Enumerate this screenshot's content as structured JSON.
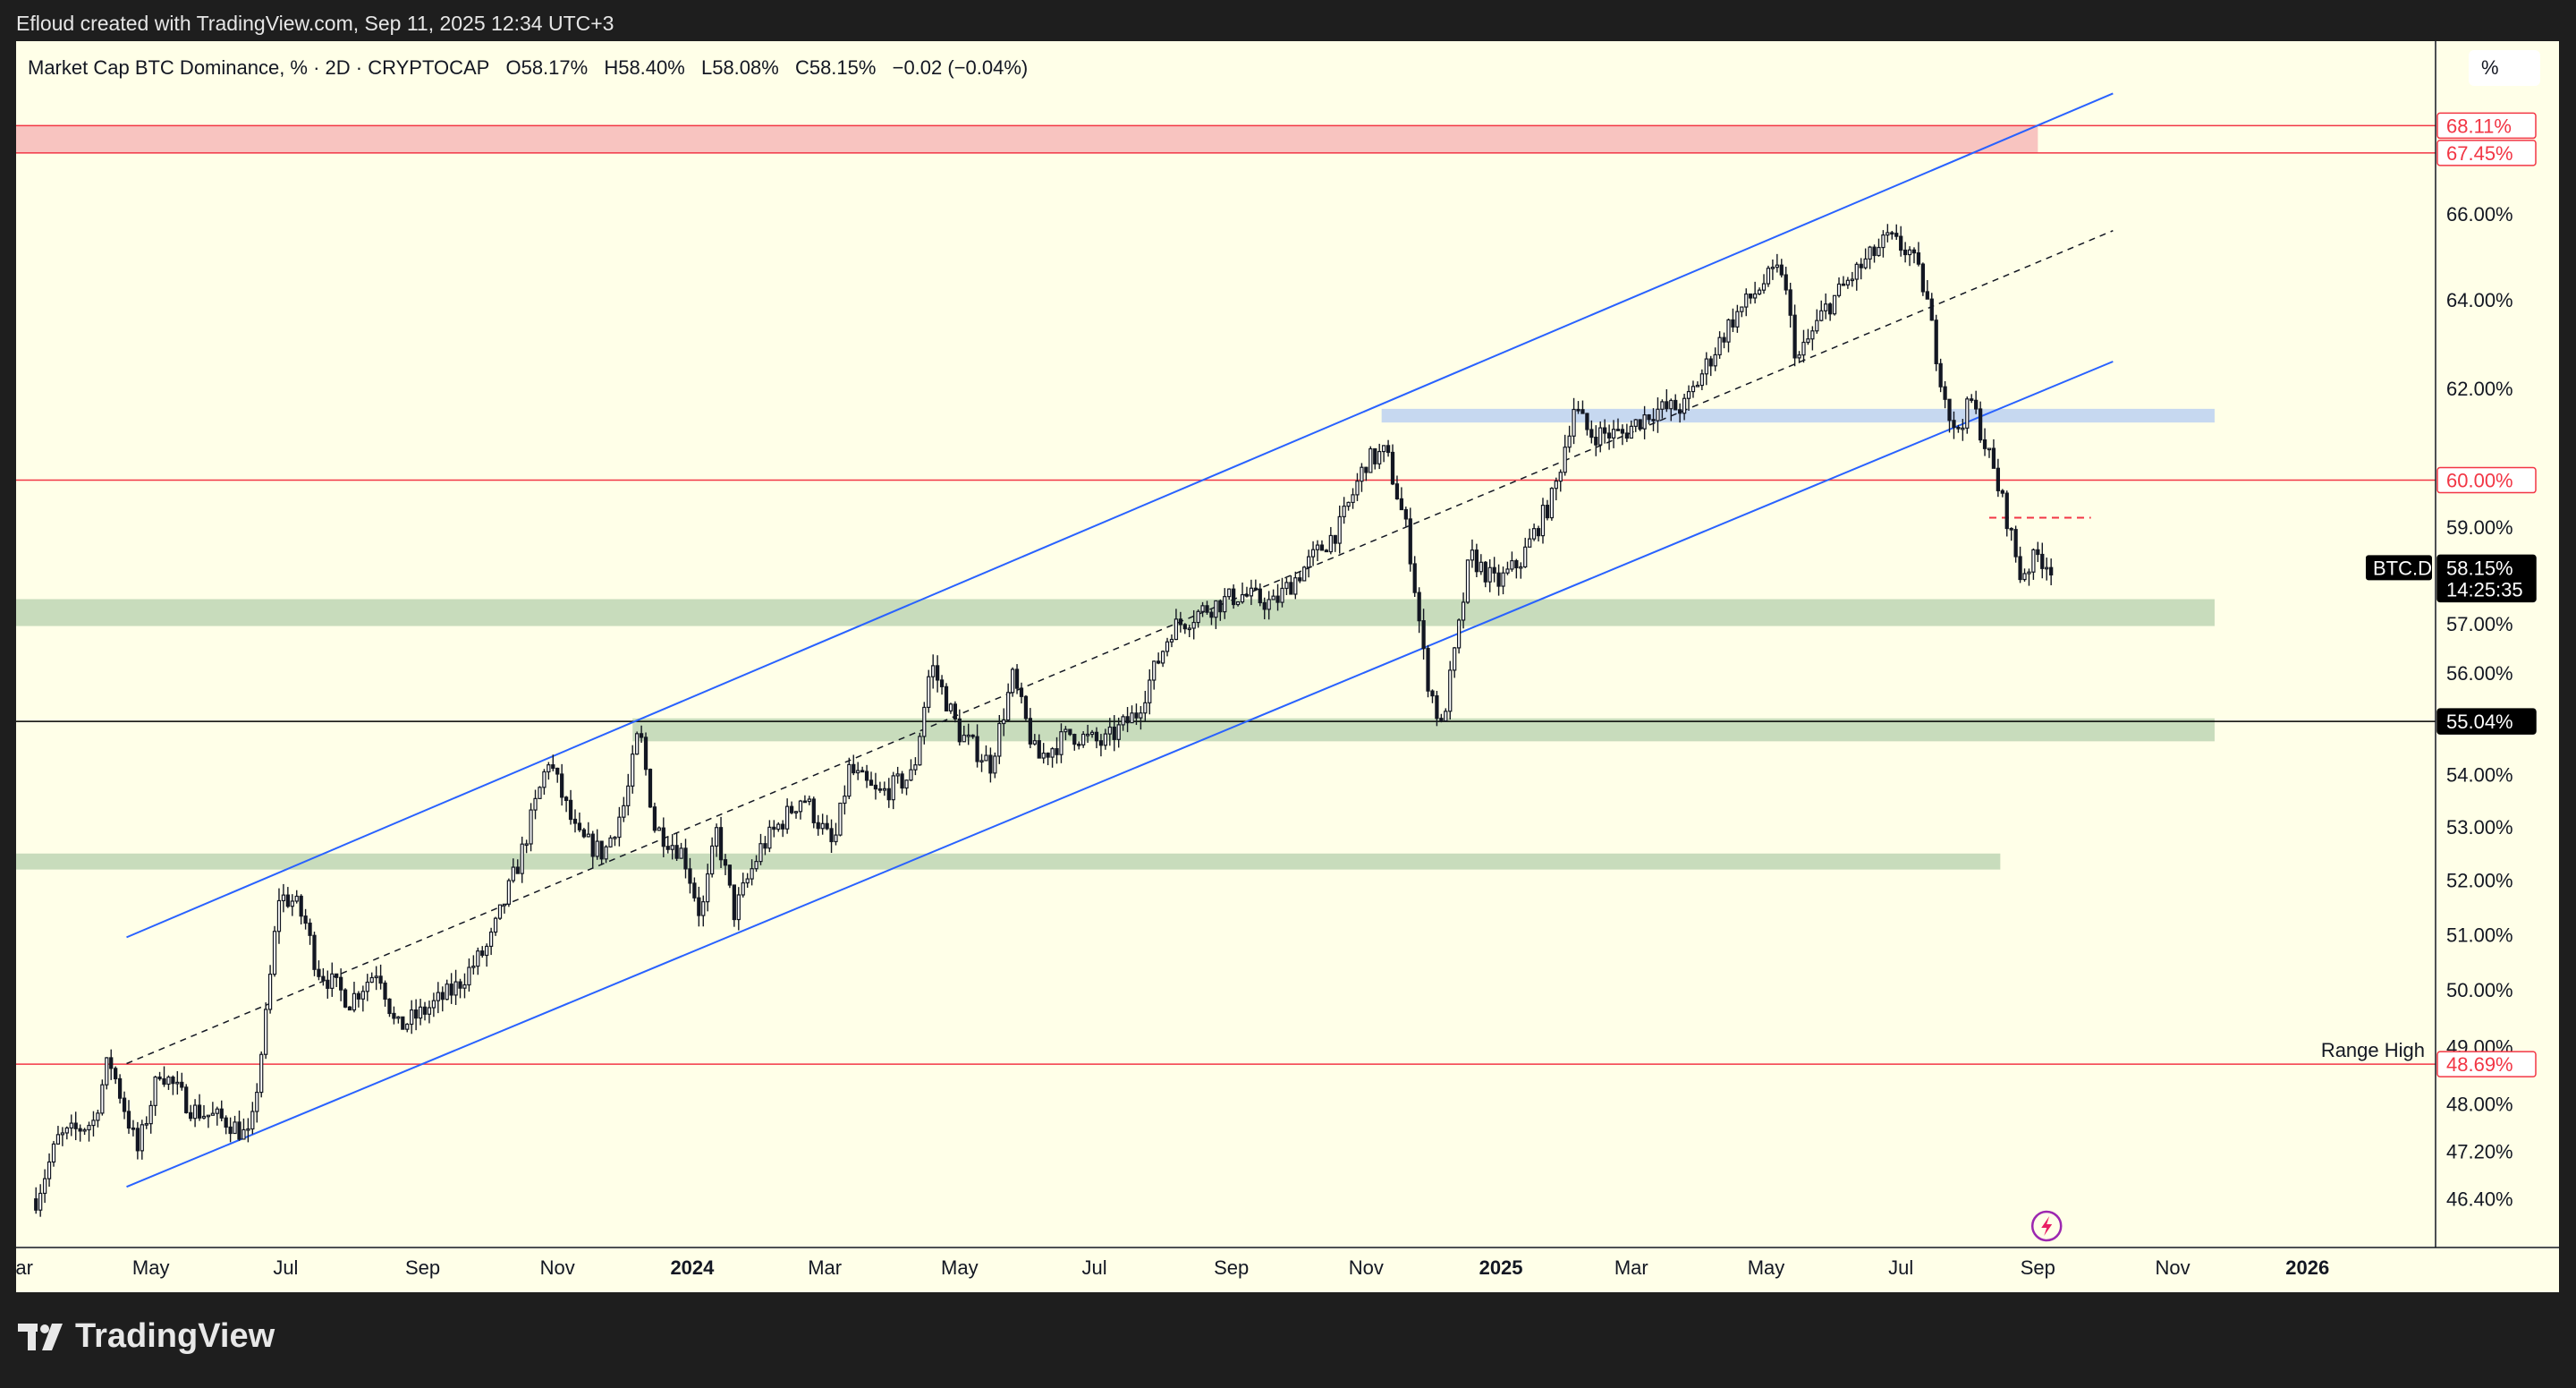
{
  "header": {
    "caption": "Efloud created with TradingView.com, Sep 11, 2025 12:34 UTC+3"
  },
  "legend": {
    "title": "Market Cap BTC Dominance, % · 2D · CRYPTOCAP",
    "open": "O58.17%",
    "high": "H58.40%",
    "low": "L58.08%",
    "close": "C58.15%",
    "change": "−0.02 (−0.04%)"
  },
  "scale_unit": "%",
  "brand": {
    "name": "TradingView"
  },
  "colors": {
    "background": "#ffffe8",
    "candle": "#131722",
    "channel": "#2962ff",
    "red_level": "#f23645",
    "resistance_zone": "#f8c4c0",
    "blue_zone": "#c6d8f0",
    "green_zone": "#c8dcbc",
    "label_red": "#f23645",
    "label_black": "#000000"
  },
  "chart_data": {
    "type": "candlestick",
    "symbol": "BTC.D",
    "timeframe": "2D",
    "x_range": [
      "2023-03-01",
      "2026-02-28"
    ],
    "y_scale": "log",
    "x_ticks": [
      {
        "date": "2023-03-01",
        "label": "Mar"
      },
      {
        "date": "2023-05-01",
        "label": "May"
      },
      {
        "date": "2023-07-01",
        "label": "Jul"
      },
      {
        "date": "2023-09-01",
        "label": "Sep"
      },
      {
        "date": "2023-11-01",
        "label": "Nov"
      },
      {
        "date": "2024-01-01",
        "label": "2024",
        "bold": true
      },
      {
        "date": "2024-03-01",
        "label": "Mar"
      },
      {
        "date": "2024-05-01",
        "label": "May"
      },
      {
        "date": "2024-07-01",
        "label": "Jul"
      },
      {
        "date": "2024-09-01",
        "label": "Sep"
      },
      {
        "date": "2024-11-01",
        "label": "Nov"
      },
      {
        "date": "2025-01-01",
        "label": "2025",
        "bold": true
      },
      {
        "date": "2025-03-01",
        "label": "Mar"
      },
      {
        "date": "2025-05-01",
        "label": "May"
      },
      {
        "date": "2025-07-01",
        "label": "Jul"
      },
      {
        "date": "2025-09-01",
        "label": "Sep"
      },
      {
        "date": "2025-11-01",
        "label": "Nov"
      },
      {
        "date": "2026-01-01",
        "label": "2026",
        "bold": true
      }
    ],
    "y_ticks": [
      {
        "value": 66.0,
        "label": "66.00%"
      },
      {
        "value": 64.0,
        "label": "64.00%"
      },
      {
        "value": 62.0,
        "label": "62.00%"
      },
      {
        "value": 59.0,
        "label": "59.00%"
      },
      {
        "value": 57.0,
        "label": "57.00%"
      },
      {
        "value": 56.0,
        "label": "56.00%"
      },
      {
        "value": 54.0,
        "label": "54.00%"
      },
      {
        "value": 53.0,
        "label": "53.00%"
      },
      {
        "value": 52.0,
        "label": "52.00%"
      },
      {
        "value": 51.0,
        "label": "51.00%"
      },
      {
        "value": 50.0,
        "label": "50.00%"
      },
      {
        "value": 49.0,
        "label": "49.00%"
      },
      {
        "value": 48.0,
        "label": "48.00%"
      },
      {
        "value": 47.2,
        "label": "47.20%"
      },
      {
        "value": 46.4,
        "label": "46.40%"
      }
    ],
    "price_labels": [
      {
        "value": 68.11,
        "label": "68.11%",
        "style": "red"
      },
      {
        "value": 67.45,
        "label": "67.45%",
        "style": "red"
      },
      {
        "value": 60.0,
        "label": "60.00%",
        "style": "red"
      },
      {
        "value": 58.15,
        "label": "58.15%",
        "sublabel": "14:25:35",
        "style": "black",
        "tag": "BTC.D"
      },
      {
        "value": 55.04,
        "label": "55.04%",
        "style": "black"
      },
      {
        "value": 48.69,
        "label": "48.69%",
        "style": "red",
        "text": "Range High"
      }
    ],
    "horizontal_lines": [
      {
        "value": 68.11,
        "color": "red"
      },
      {
        "value": 67.45,
        "color": "red"
      },
      {
        "value": 60.0,
        "color": "red"
      },
      {
        "value": 55.04,
        "color": "black"
      },
      {
        "value": 48.69,
        "color": "red"
      }
    ],
    "zones": [
      {
        "top": 68.11,
        "bottom": 67.45,
        "from": "2023-03-01",
        "to": "2025-09-01",
        "color": "resistance_zone"
      },
      {
        "top": 61.55,
        "bottom": 61.25,
        "from": "2024-11-08",
        "to": "2025-11-20",
        "color": "blue_zone"
      },
      {
        "top": 57.5,
        "bottom": 56.95,
        "from": "2023-03-01",
        "to": "2025-11-20",
        "color": "green_zone"
      },
      {
        "top": 55.1,
        "bottom": 54.65,
        "from": "2023-12-05",
        "to": "2025-11-20",
        "color": "green_zone"
      },
      {
        "top": 52.5,
        "bottom": 52.2,
        "from": "2023-03-01",
        "to": "2025-08-15",
        "color": "green_zone"
      }
    ],
    "channel": {
      "upper": [
        {
          "date": "2023-04-20",
          "value": 50.95
        },
        {
          "date": "2025-10-05",
          "value": 68.9
        }
      ],
      "lower": [
        {
          "date": "2023-04-20",
          "value": 46.6
        },
        {
          "date": "2025-10-05",
          "value": 62.6
        }
      ],
      "middle": [
        {
          "date": "2023-04-20",
          "value": 48.7
        },
        {
          "date": "2025-10-05",
          "value": 65.6
        }
      ]
    },
    "dashed_marker": {
      "value": 59.2,
      "from": "2025-08-10",
      "to": "2025-09-25",
      "color": "red"
    },
    "path": [
      {
        "date": "2023-03-10",
        "value": 46.4
      },
      {
        "date": "2023-03-20",
        "value": 47.4
      },
      {
        "date": "2023-04-05",
        "value": 47.7
      },
      {
        "date": "2023-04-12",
        "value": 48.8
      },
      {
        "date": "2023-04-25",
        "value": 47.2
      },
      {
        "date": "2023-05-05",
        "value": 48.6
      },
      {
        "date": "2023-05-20",
        "value": 47.9
      },
      {
        "date": "2023-06-05",
        "value": 47.7
      },
      {
        "date": "2023-06-15",
        "value": 47.4
      },
      {
        "date": "2023-06-22",
        "value": 49.5
      },
      {
        "date": "2023-06-28",
        "value": 51.7
      },
      {
        "date": "2023-07-05",
        "value": 51.6
      },
      {
        "date": "2023-07-10",
        "value": 51.2
      },
      {
        "date": "2023-07-15",
        "value": 50.4
      },
      {
        "date": "2023-07-30",
        "value": 49.8
      },
      {
        "date": "2023-08-12",
        "value": 50.4
      },
      {
        "date": "2023-08-20",
        "value": 49.3
      },
      {
        "date": "2023-09-01",
        "value": 49.6
      },
      {
        "date": "2023-09-15",
        "value": 50.0
      },
      {
        "date": "2023-10-01",
        "value": 50.8
      },
      {
        "date": "2023-10-15",
        "value": 52.4
      },
      {
        "date": "2023-10-28",
        "value": 54.3
      },
      {
        "date": "2023-11-10",
        "value": 52.8
      },
      {
        "date": "2023-11-22",
        "value": 52.5
      },
      {
        "date": "2023-12-02",
        "value": 53.5
      },
      {
        "date": "2023-12-08",
        "value": 54.9
      },
      {
        "date": "2023-12-15",
        "value": 53.0
      },
      {
        "date": "2023-12-28",
        "value": 52.5
      },
      {
        "date": "2024-01-05",
        "value": 51.3
      },
      {
        "date": "2024-01-12",
        "value": 52.9
      },
      {
        "date": "2024-01-20",
        "value": 51.4
      },
      {
        "date": "2024-02-01",
        "value": 52.6
      },
      {
        "date": "2024-02-20",
        "value": 53.6
      },
      {
        "date": "2024-03-05",
        "value": 52.6
      },
      {
        "date": "2024-03-12",
        "value": 54.1
      },
      {
        "date": "2024-03-25",
        "value": 53.6
      },
      {
        "date": "2024-04-10",
        "value": 54.0
      },
      {
        "date": "2024-04-18",
        "value": 56.2
      },
      {
        "date": "2024-05-01",
        "value": 54.8
      },
      {
        "date": "2024-05-15",
        "value": 54.2
      },
      {
        "date": "2024-05-25",
        "value": 55.9
      },
      {
        "date": "2024-06-05",
        "value": 54.3
      },
      {
        "date": "2024-06-20",
        "value": 54.8
      },
      {
        "date": "2024-07-05",
        "value": 54.6
      },
      {
        "date": "2024-07-20",
        "value": 55.2
      },
      {
        "date": "2024-08-05",
        "value": 56.9
      },
      {
        "date": "2024-08-20",
        "value": 57.3
      },
      {
        "date": "2024-09-05",
        "value": 57.6
      },
      {
        "date": "2024-09-20",
        "value": 57.4
      },
      {
        "date": "2024-10-05",
        "value": 58.2
      },
      {
        "date": "2024-10-20",
        "value": 59.0
      },
      {
        "date": "2024-11-01",
        "value": 60.4
      },
      {
        "date": "2024-11-10",
        "value": 60.6
      },
      {
        "date": "2024-11-20",
        "value": 58.8
      },
      {
        "date": "2024-11-28",
        "value": 56.0
      },
      {
        "date": "2024-12-05",
        "value": 54.9
      },
      {
        "date": "2024-12-12",
        "value": 56.6
      },
      {
        "date": "2024-12-18",
        "value": 58.4
      },
      {
        "date": "2024-12-30",
        "value": 57.8
      },
      {
        "date": "2025-01-10",
        "value": 58.3
      },
      {
        "date": "2025-01-25",
        "value": 59.7
      },
      {
        "date": "2025-02-03",
        "value": 61.6
      },
      {
        "date": "2025-02-10",
        "value": 61.0
      },
      {
        "date": "2025-02-25",
        "value": 61.0
      },
      {
        "date": "2025-03-10",
        "value": 61.5
      },
      {
        "date": "2025-03-25",
        "value": 61.6
      },
      {
        "date": "2025-04-05",
        "value": 62.6
      },
      {
        "date": "2025-04-15",
        "value": 63.5
      },
      {
        "date": "2025-04-30",
        "value": 64.4
      },
      {
        "date": "2025-05-08",
        "value": 64.7
      },
      {
        "date": "2025-05-15",
        "value": 62.6
      },
      {
        "date": "2025-05-28",
        "value": 63.8
      },
      {
        "date": "2025-06-10",
        "value": 64.6
      },
      {
        "date": "2025-06-25",
        "value": 65.4
      },
      {
        "date": "2025-07-05",
        "value": 65.1
      },
      {
        "date": "2025-07-12",
        "value": 64.2
      },
      {
        "date": "2025-07-18",
        "value": 62.5
      },
      {
        "date": "2025-07-25",
        "value": 61.0
      },
      {
        "date": "2025-08-02",
        "value": 61.7
      },
      {
        "date": "2025-08-10",
        "value": 60.5
      },
      {
        "date": "2025-08-18",
        "value": 59.2
      },
      {
        "date": "2025-08-24",
        "value": 58.0
      },
      {
        "date": "2025-09-01",
        "value": 58.4
      },
      {
        "date": "2025-09-08",
        "value": 58.15
      }
    ]
  }
}
